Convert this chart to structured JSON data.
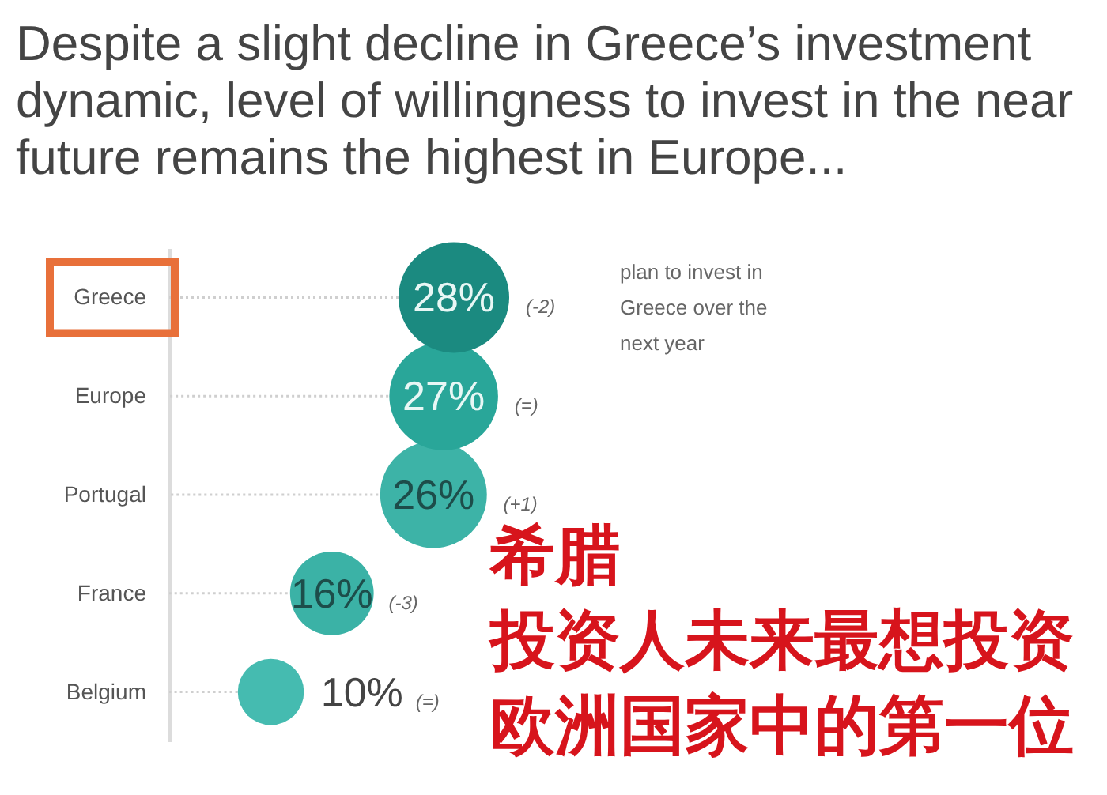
{
  "chart_data": {
    "type": "other",
    "title": "Despite a slight decline in Greece’s investment dynamic, level of willingness to invest in the near future remains the highest in Europe...",
    "categories": [
      "Greece",
      "Europe",
      "Portugal",
      "France",
      "Belgium"
    ],
    "values": [
      28,
      27,
      26,
      16,
      10
    ],
    "colors": [
      "#1b8a80",
      "#29a699",
      "#3db3a7",
      "#3bb2a6",
      "#45bbb0"
    ],
    "value_labels": [
      "28%",
      "27%",
      "26%",
      "16%",
      "10%"
    ],
    "annotations": [
      {
        "text": "(-2)",
        "y": "Greece"
      },
      "plan to invest in Greece over the next year",
      {
        "text": "(=)",
        "y": "Europe"
      },
      {
        "text": "(+1)",
        "y": "Portugal"
      },
      {
        "text": "(-3)",
        "y": "France"
      },
      {
        "text": "(=)",
        "y": "Belgium"
      },
      "希腊",
      "投资人未来最想投资",
      "欧洲国家中的第一位"
    ]
  }
}
